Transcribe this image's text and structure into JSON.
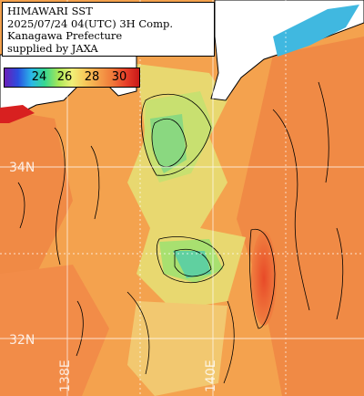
{
  "title": {
    "lines": [
      "HIMAWARI SST",
      "2025/07/24 04(UTC) 3H Comp.",
      "Kanagawa Prefecture",
      "supplied by JAXA"
    ]
  },
  "legend": {
    "labels": [
      "24",
      "26",
      "28",
      "30"
    ],
    "colors": [
      "#6a1fb8",
      "#2a4fe0",
      "#2ab8e8",
      "#38d890",
      "#a8e858",
      "#f0f078",
      "#f8c85a",
      "#f5a04a",
      "#f07a3a",
      "#e8402a",
      "#c81818"
    ]
  },
  "grid": {
    "lat_labels": [
      "34N",
      "32N"
    ],
    "lon_labels": [
      "138E",
      "140E"
    ]
  },
  "map": {
    "sea_warm": "#f5a852",
    "sea_hot": "#e85a2e",
    "sea_cool": "#c8e070",
    "sea_cold": "#6ad89a",
    "land": "#ffffff",
    "coast": "#000000"
  }
}
